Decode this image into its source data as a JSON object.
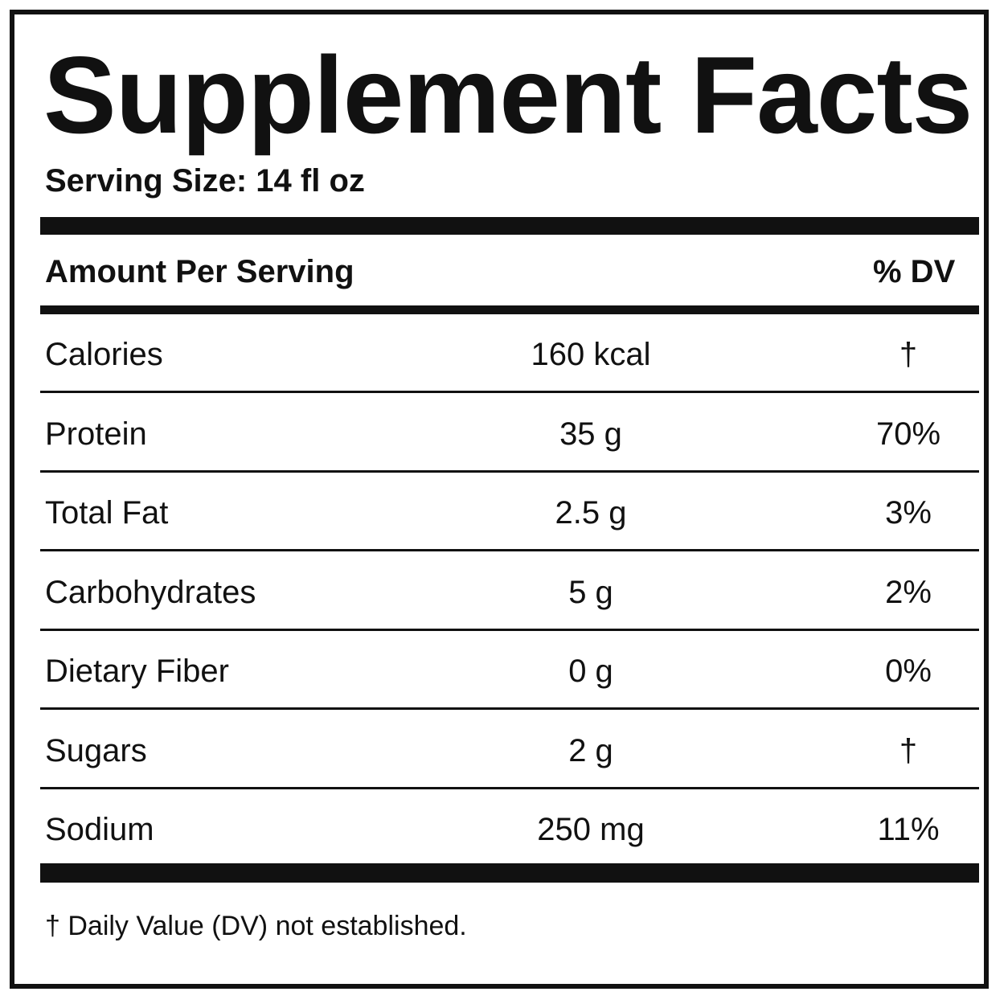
{
  "title": "Supplement Facts",
  "serving_size": "Serving Size: 14 fl oz",
  "table": {
    "header": [
      "Amount Per Serving",
      "% DV"
    ],
    "rows": [
      [
        "Calories",
        "160 kcal",
        "†"
      ],
      [
        "Protein",
        "35 g",
        "70%"
      ],
      [
        "Total Fat",
        "2.5 g",
        "3%"
      ],
      [
        "Carbohydrates",
        "5 g",
        "2%"
      ],
      [
        "Dietary Fiber",
        "0 g",
        "0%"
      ],
      [
        "Sugars",
        "2 g",
        "†"
      ],
      [
        "Sodium",
        "250 mg",
        "11%"
      ]
    ]
  },
  "footnote": "† Daily Value (DV) not established."
}
